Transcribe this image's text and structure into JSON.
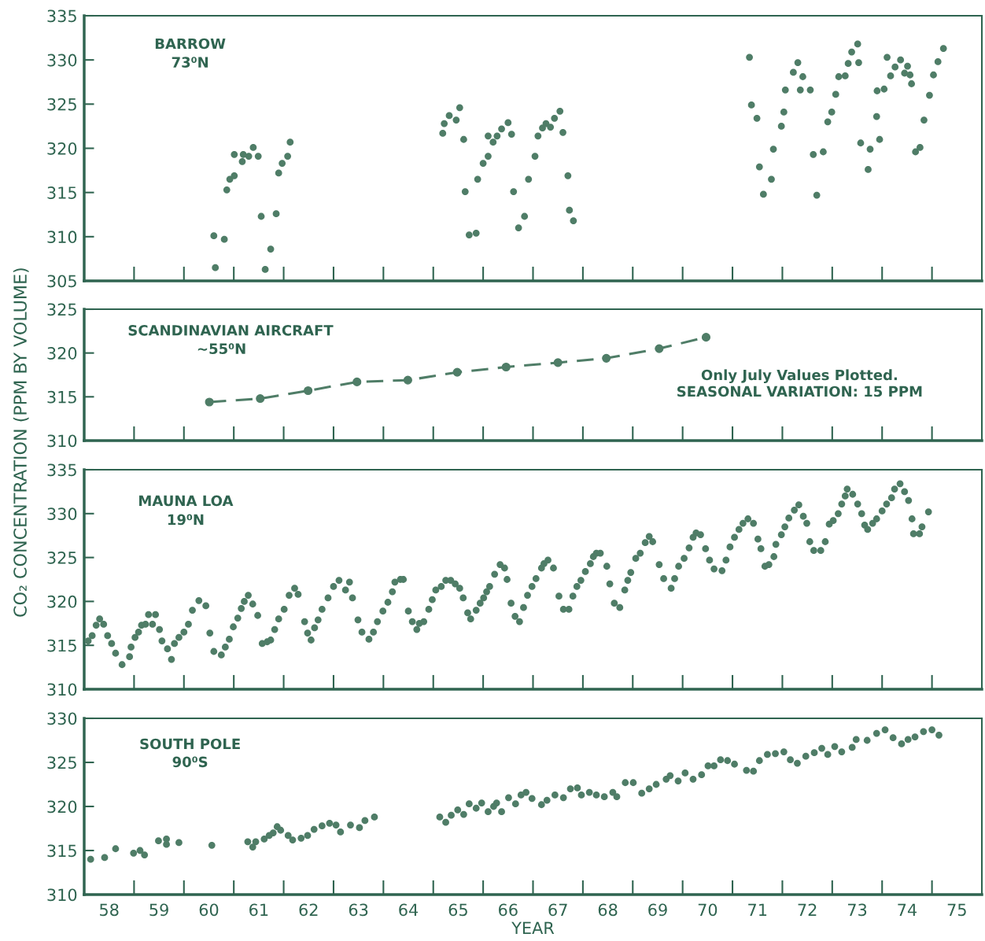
{
  "chart_data": [
    {
      "type": "scatter",
      "ylabel": "CO₂ CONCENTRATION (PPM BY VOLUME)",
      "annotations": [
        "BARROW",
        "73⁰N"
      ],
      "xlim": [
        57.5,
        75.5
      ],
      "ylim": [
        305,
        335
      ],
      "yticks": [
        305,
        310,
        315,
        320,
        325,
        330,
        335
      ],
      "tick_labels": "y",
      "marker": "circle",
      "xticks": [
        58,
        59,
        60,
        61,
        62,
        63,
        64,
        65,
        66,
        67,
        68,
        69,
        70,
        71,
        72,
        73,
        74,
        75
      ],
      "series": [
        {
          "color": "#4f7d67",
          "x": [
            60.1,
            60.13,
            60.31,
            60.36,
            60.42,
            60.51,
            60.51,
            60.67,
            60.69,
            60.8,
            60.89,
            60.99,
            61.05,
            61.13,
            61.24,
            61.35,
            61.4,
            61.47,
            61.58,
            61.63,
            64.69,
            64.72,
            64.82,
            64.96,
            65.03,
            65.11,
            65.14,
            65.22,
            65.36,
            65.39,
            65.5,
            65.6,
            65.6,
            65.7,
            65.78,
            65.87,
            66.0,
            66.07,
            66.11,
            66.21,
            66.33,
            66.41,
            66.54,
            66.6,
            66.69,
            66.76,
            66.85,
            66.93,
            67.04,
            67.1,
            67.2,
            67.23,
            67.31,
            70.84,
            70.88,
            70.99,
            71.04,
            71.12,
            71.28,
            71.32,
            71.48,
            71.53,
            71.56,
            71.72,
            71.81,
            71.86,
            71.91,
            72.06,
            72.12,
            72.19,
            72.32,
            72.41,
            72.49,
            72.57,
            72.63,
            72.76,
            72.82,
            72.89,
            73.01,
            73.03,
            73.07,
            73.22,
            73.26,
            73.39,
            73.4,
            73.45,
            73.54,
            73.6,
            73.67,
            73.76,
            73.87,
            73.95,
            74.01,
            74.06,
            74.09,
            74.17,
            74.26,
            74.34,
            74.45,
            74.53,
            74.62,
            74.73
          ],
          "values": [
            310.1,
            306.5,
            309.7,
            315.3,
            316.5,
            316.9,
            319.3,
            318.5,
            319.3,
            319.1,
            320.1,
            319.1,
            312.3,
            306.3,
            308.6,
            312.6,
            317.2,
            318.3,
            319.1,
            320.7,
            321.7,
            322.8,
            323.7,
            323.2,
            324.6,
            321.0,
            315.1,
            310.2,
            310.4,
            316.5,
            318.3,
            319.1,
            321.4,
            320.7,
            321.4,
            322.2,
            322.9,
            321.6,
            315.1,
            311.0,
            312.3,
            316.5,
            319.1,
            321.4,
            322.3,
            322.8,
            322.4,
            323.4,
            324.2,
            321.8,
            316.9,
            313.0,
            311.8,
            330.3,
            324.9,
            323.4,
            317.9,
            314.8,
            316.5,
            319.9,
            322.5,
            324.1,
            326.6,
            328.6,
            329.7,
            326.6,
            328.1,
            326.6,
            319.3,
            314.7,
            319.6,
            323.0,
            324.1,
            326.1,
            328.1,
            328.2,
            329.6,
            330.9,
            331.8,
            329.7,
            320.6,
            317.6,
            319.9,
            323.6,
            326.5,
            321.0,
            326.7,
            330.3,
            328.2,
            329.2,
            330.0,
            328.5,
            329.3,
            328.3,
            327.3,
            319.6,
            320.1,
            323.2,
            326.0,
            328.3,
            329.8,
            331.3
          ]
        }
      ]
    },
    {
      "type": "line",
      "annotations": [
        "SCANDINAVIAN AIRCRAFT",
        "∼55⁰N",
        "Only July Values Plotted.",
        "SEASONAL VARIATION: 15 PPM"
      ],
      "xlim": [
        57.5,
        75.5
      ],
      "ylim": [
        310,
        325
      ],
      "yticks": [
        310,
        315,
        320,
        325
      ],
      "tick_labels": "y",
      "marker": "circle",
      "line_style": "dashed",
      "xticks": [
        58,
        59,
        60,
        61,
        62,
        63,
        64,
        65,
        66,
        67,
        68,
        69,
        70,
        71,
        72,
        73,
        74,
        75
      ],
      "series": [
        {
          "color": "#4f7d67",
          "x": [
            60.01,
            61.03,
            61.99,
            62.97,
            63.99,
            64.98,
            65.96,
            67.0,
            67.97,
            69.03,
            69.97
          ],
          "values": [
            314.4,
            314.8,
            315.7,
            316.7,
            316.9,
            317.8,
            318.4,
            318.9,
            319.4,
            320.5,
            321.8
          ]
        }
      ]
    },
    {
      "type": "scatter",
      "annotations": [
        "MAUNA LOA",
        "19⁰N"
      ],
      "xlim": [
        57.5,
        75.5
      ],
      "ylim": [
        310,
        335
      ],
      "yticks": [
        310,
        315,
        320,
        325,
        330,
        335
      ],
      "tick_labels": "y",
      "marker": "circle",
      "xticks": [
        58,
        59,
        60,
        61,
        62,
        63,
        64,
        65,
        66,
        67,
        68,
        69,
        70,
        71,
        72,
        73,
        74,
        75
      ],
      "series": [
        {
          "color": "#4f7d67",
          "x": [
            57.58,
            57.66,
            57.74,
            57.81,
            57.89,
            57.97,
            58.05,
            58.13,
            58.26,
            58.41,
            58.44,
            58.52,
            58.59,
            58.65,
            58.73,
            58.79,
            58.87,
            58.93,
            59.01,
            59.06,
            59.17,
            59.25,
            59.31,
            59.4,
            59.5,
            59.59,
            59.67,
            59.8,
            59.94,
            60.02,
            60.1,
            60.25,
            60.33,
            60.41,
            60.49,
            60.58,
            60.65,
            60.71,
            60.79,
            60.88,
            60.98,
            61.07,
            61.17,
            61.24,
            61.32,
            61.4,
            61.51,
            61.61,
            61.72,
            61.79,
            61.92,
            61.98,
            62.05,
            62.12,
            62.19,
            62.27,
            62.39,
            62.5,
            62.61,
            62.74,
            62.82,
            62.88,
            62.99,
            63.07,
            63.21,
            63.3,
            63.38,
            63.49,
            63.59,
            63.68,
            63.73,
            63.84,
            63.9,
            64.0,
            64.08,
            64.17,
            64.22,
            64.31,
            64.41,
            64.48,
            64.55,
            64.66,
            64.75,
            64.85,
            64.94,
            65.03,
            65.1,
            65.19,
            65.25,
            65.36,
            65.44,
            65.51,
            65.57,
            65.63,
            65.73,
            65.84,
            65.93,
            65.98,
            66.06,
            66.14,
            66.23,
            66.31,
            66.39,
            66.48,
            66.56,
            66.67,
            66.72,
            66.8,
            66.91,
            67.02,
            67.11,
            67.22,
            67.3,
            67.38,
            67.46,
            67.55,
            67.65,
            67.71,
            67.77,
            67.85,
            67.98,
            68.04,
            68.13,
            68.24,
            68.34,
            68.4,
            68.46,
            68.56,
            68.65,
            68.75,
            68.83,
            68.9,
            69.03,
            69.12,
            69.27,
            69.34,
            69.42,
            69.53,
            69.63,
            69.71,
            69.77,
            69.86,
            69.96,
            70.04,
            70.13,
            70.29,
            70.37,
            70.45,
            70.54,
            70.63,
            70.71,
            70.81,
            70.92,
            71.01,
            71.07,
            71.15,
            71.23,
            71.33,
            71.37,
            71.48,
            71.55,
            71.63,
            71.74,
            71.83,
            71.92,
            71.99,
            72.05,
            72.13,
            72.27,
            72.36,
            72.44,
            72.52,
            72.62,
            72.69,
            72.76,
            72.8,
            72.91,
            73.01,
            73.09,
            73.15,
            73.21,
            73.31,
            73.39,
            73.5,
            73.59,
            73.69,
            73.75,
            73.86,
            73.95,
            74.03,
            74.1,
            74.13,
            74.25,
            74.3,
            74.43
          ],
          "values": [
            315.5,
            316.1,
            317.3,
            318.0,
            317.4,
            316.1,
            315.2,
            314.1,
            312.8,
            313.7,
            314.8,
            315.9,
            316.5,
            317.3,
            317.4,
            318.5,
            317.4,
            318.5,
            316.8,
            315.5,
            314.6,
            313.4,
            315.2,
            315.9,
            316.5,
            317.4,
            319.0,
            320.1,
            319.5,
            316.4,
            314.3,
            313.9,
            314.8,
            315.7,
            317.1,
            318.1,
            319.2,
            320.0,
            320.7,
            319.7,
            318.4,
            315.2,
            315.4,
            315.6,
            316.8,
            318.0,
            319.1,
            320.7,
            321.5,
            320.8,
            317.7,
            316.4,
            315.6,
            317.0,
            317.9,
            319.1,
            320.4,
            321.7,
            322.4,
            321.3,
            322.2,
            320.4,
            317.9,
            316.5,
            315.7,
            316.5,
            317.7,
            318.9,
            319.9,
            321.1,
            322.2,
            322.5,
            322.5,
            318.9,
            317.7,
            316.8,
            317.5,
            317.7,
            319.1,
            320.2,
            321.3,
            321.7,
            322.4,
            322.4,
            322.0,
            321.5,
            320.4,
            318.7,
            318.0,
            319.0,
            319.8,
            320.4,
            321.1,
            321.7,
            323.1,
            324.2,
            323.8,
            322.5,
            319.8,
            318.3,
            317.7,
            319.3,
            320.7,
            321.7,
            322.6,
            323.8,
            324.3,
            324.7,
            323.8,
            320.6,
            319.1,
            319.1,
            320.6,
            321.7,
            322.4,
            323.4,
            324.3,
            325.1,
            325.5,
            325.5,
            324.0,
            322.0,
            319.8,
            319.3,
            321.3,
            322.4,
            323.3,
            324.9,
            325.5,
            326.7,
            327.4,
            326.8,
            324.2,
            322.6,
            321.5,
            322.6,
            324.0,
            324.9,
            326.1,
            327.3,
            327.8,
            327.6,
            326.0,
            324.7,
            323.7,
            323.5,
            324.7,
            326.2,
            327.3,
            328.2,
            328.9,
            329.4,
            328.9,
            327.1,
            326.0,
            324.0,
            324.2,
            325.1,
            326.5,
            327.6,
            328.5,
            329.5,
            330.4,
            331.0,
            329.7,
            328.9,
            326.8,
            325.8,
            325.8,
            326.8,
            328.8,
            329.2,
            330.0,
            331.1,
            332.0,
            332.8,
            332.2,
            331.1,
            330.0,
            328.7,
            328.2,
            328.9,
            329.4,
            330.3,
            331.1,
            331.8,
            332.8,
            333.4,
            332.5,
            331.5,
            329.4,
            327.7,
            327.7,
            328.5,
            330.2
          ]
        }
      ]
    },
    {
      "type": "scatter",
      "xlabel": "YEAR",
      "annotations": [
        "SOUTH POLE",
        "90⁰S"
      ],
      "xlim": [
        57.5,
        75.5
      ],
      "ylim": [
        310,
        330
      ],
      "yticks": [
        310,
        315,
        320,
        325,
        330
      ],
      "marker": "circle",
      "xticks": [
        58,
        59,
        60,
        61,
        62,
        63,
        64,
        65,
        66,
        67,
        68,
        69,
        70,
        71,
        72,
        73,
        74,
        75
      ],
      "series": [
        {
          "color": "#4f7d67",
          "x": [
            57.63,
            57.91,
            58.13,
            58.49,
            58.62,
            58.71,
            58.99,
            59.15,
            59.15,
            59.4,
            60.06,
            60.78,
            60.88,
            60.94,
            61.11,
            61.21,
            61.29,
            61.37,
            61.44,
            61.59,
            61.68,
            61.85,
            61.98,
            62.11,
            62.27,
            62.42,
            62.55,
            62.64,
            62.84,
            63.02,
            63.13,
            63.32,
            64.63,
            64.75,
            64.86,
            64.99,
            65.11,
            65.22,
            65.36,
            65.47,
            65.6,
            65.71,
            65.77,
            65.87,
            66.01,
            66.15,
            66.26,
            66.36,
            66.48,
            66.67,
            66.78,
            66.94,
            67.11,
            67.25,
            67.39,
            67.47,
            67.63,
            67.77,
            67.93,
            68.1,
            68.18,
            68.35,
            68.51,
            68.68,
            68.83,
            68.97,
            69.17,
            69.25,
            69.41,
            69.55,
            69.71,
            69.88,
            70.01,
            70.13,
            70.26,
            70.4,
            70.54,
            70.78,
            70.92,
            71.04,
            71.2,
            71.36,
            71.53,
            71.66,
            71.8,
            71.97,
            72.14,
            72.29,
            72.41,
            72.55,
            72.69,
            72.9,
            72.98,
            73.2,
            73.39,
            73.56,
            73.72,
            73.89,
            74.02,
            74.16,
            74.33,
            74.5,
            74.64
          ],
          "values": [
            314.0,
            314.2,
            315.2,
            314.7,
            315.0,
            314.5,
            316.1,
            316.3,
            315.7,
            315.9,
            315.6,
            316.0,
            315.4,
            316.0,
            316.3,
            316.7,
            317.0,
            317.7,
            317.3,
            316.7,
            316.2,
            316.4,
            316.7,
            317.4,
            317.8,
            318.1,
            317.9,
            317.1,
            317.9,
            317.6,
            318.4,
            318.8,
            318.8,
            318.2,
            319.0,
            319.6,
            319.1,
            320.3,
            319.8,
            320.4,
            319.4,
            320.0,
            320.4,
            319.4,
            321.0,
            320.3,
            321.3,
            321.6,
            320.9,
            320.2,
            320.7,
            321.3,
            321.0,
            322.0,
            322.1,
            321.3,
            321.6,
            321.3,
            321.1,
            321.6,
            321.1,
            322.7,
            322.7,
            321.5,
            322.0,
            322.5,
            323.1,
            323.5,
            322.9,
            323.8,
            323.1,
            323.6,
            324.6,
            324.6,
            325.3,
            325.2,
            324.8,
            324.1,
            324.0,
            325.2,
            325.9,
            326.0,
            326.2,
            325.3,
            324.9,
            325.7,
            326.1,
            326.6,
            325.9,
            326.8,
            326.2,
            326.7,
            327.6,
            327.5,
            328.3,
            328.7,
            327.8,
            327.1,
            327.6,
            327.9,
            328.5,
            328.7,
            328.1
          ]
        }
      ]
    }
  ]
}
